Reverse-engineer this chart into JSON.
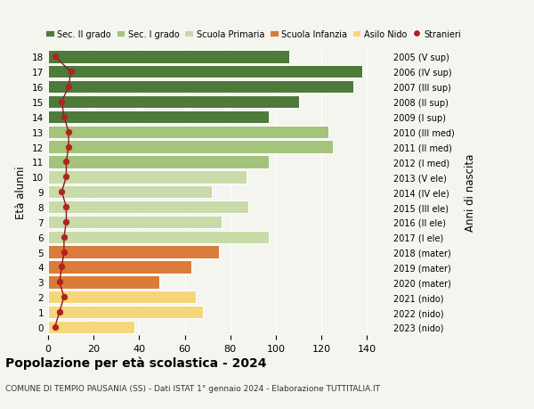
{
  "ages": [
    0,
    1,
    2,
    3,
    4,
    5,
    6,
    7,
    8,
    9,
    10,
    11,
    12,
    13,
    14,
    15,
    16,
    17,
    18
  ],
  "right_labels": [
    "2023 (nido)",
    "2022 (nido)",
    "2021 (nido)",
    "2020 (mater)",
    "2019 (mater)",
    "2018 (mater)",
    "2017 (I ele)",
    "2016 (II ele)",
    "2015 (III ele)",
    "2014 (IV ele)",
    "2013 (V ele)",
    "2012 (I med)",
    "2011 (II med)",
    "2010 (III med)",
    "2009 (I sup)",
    "2008 (II sup)",
    "2007 (III sup)",
    "2006 (IV sup)",
    "2005 (V sup)"
  ],
  "values": [
    38,
    68,
    65,
    49,
    63,
    75,
    97,
    76,
    88,
    72,
    87,
    97,
    125,
    123,
    97,
    110,
    134,
    138,
    106
  ],
  "stranieri": [
    3,
    5,
    7,
    5,
    6,
    7,
    7,
    8,
    8,
    6,
    8,
    8,
    9,
    9,
    7,
    6,
    9,
    10,
    3
  ],
  "bar_colors": [
    "#f5d67a",
    "#f5d67a",
    "#f5d67a",
    "#d97c3a",
    "#d97c3a",
    "#d97c3a",
    "#c8dba8",
    "#c8dba8",
    "#c8dba8",
    "#c8dba8",
    "#c8dba8",
    "#a3c47a",
    "#a3c47a",
    "#a3c47a",
    "#4e7a3a",
    "#4e7a3a",
    "#4e7a3a",
    "#4e7a3a",
    "#4e7a3a"
  ],
  "legend_labels": [
    "Sec. II grado",
    "Sec. I grado",
    "Scuola Primaria",
    "Scuola Infanzia",
    "Asilo Nido",
    "Stranieri"
  ],
  "legend_colors": [
    "#4e7a3a",
    "#a3c47a",
    "#c8dba8",
    "#d97c3a",
    "#f5d67a",
    "#b22222"
  ],
  "ylabel_left": "Età alunni",
  "ylabel_right": "Anni di nascita",
  "xlim": [
    0,
    150
  ],
  "xticks": [
    0,
    20,
    40,
    60,
    80,
    100,
    120,
    140
  ],
  "title": "Popolazione per età scolastica - 2024",
  "subtitle": "COMUNE DI TEMPIO PAUSANIA (SS) - Dati ISTAT 1° gennaio 2024 - Elaborazione TUTTITALIA.IT",
  "bg_color": "#f5f5f0",
  "stranieri_color": "#b22222",
  "stranieri_line_color": "#8b1a1a"
}
